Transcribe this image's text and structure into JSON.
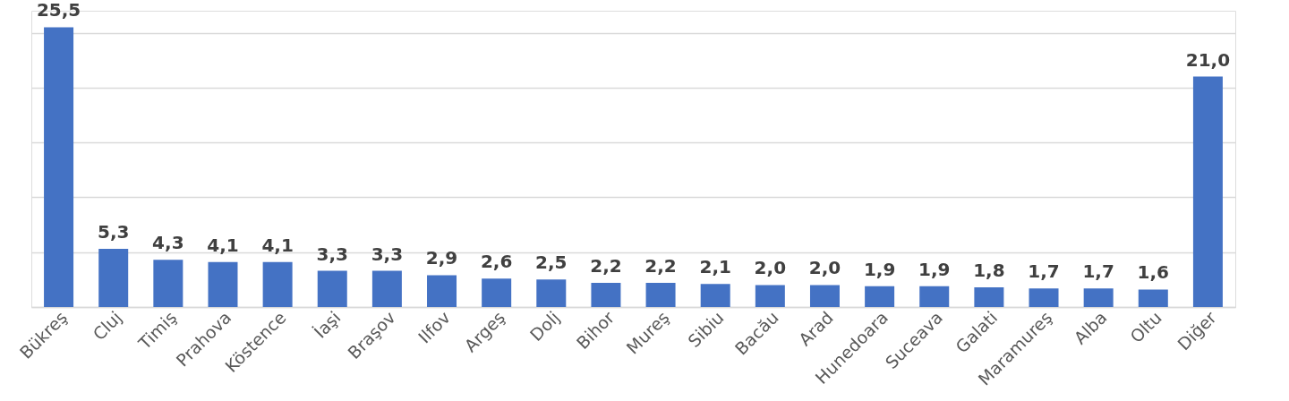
{
  "chart_data": {
    "type": "bar",
    "categories": [
      "Bükreş",
      "Cluj",
      "Timiş",
      "Prahova",
      "Köstence",
      "İaşi",
      "Braşov",
      "Ilfov",
      "Argeş",
      "Dolj",
      "Bihor",
      "Mureş",
      "Sibiu",
      "Bacău",
      "Arad",
      "Hunedoara",
      "Suceava",
      "Galati",
      "Maramureş",
      "Alba",
      "Oltu",
      "Diğer"
    ],
    "values": [
      25.5,
      5.3,
      4.3,
      4.1,
      4.1,
      3.3,
      3.3,
      2.9,
      2.6,
      2.5,
      2.2,
      2.2,
      2.1,
      2.0,
      2.0,
      1.9,
      1.9,
      1.8,
      1.7,
      1.7,
      1.6,
      21.0
    ],
    "color": "#4472c4",
    "value_labels": [
      "25,5",
      "5,3",
      "4,3",
      "4,1",
      "4,1",
      "3,3",
      "3,3",
      "2,9",
      "2,6",
      "2,5",
      "2,2",
      "2,2",
      "2,1",
      "2,0",
      "2,0",
      "1,9",
      "1,9",
      "1,8",
      "1,7",
      "1,7",
      "1,6",
      "21,0"
    ],
    "ylim": [
      0,
      27
    ],
    "yticks": [
      0,
      5,
      10,
      15,
      20,
      25
    ],
    "grid": "y",
    "tick_labels": "x"
  }
}
